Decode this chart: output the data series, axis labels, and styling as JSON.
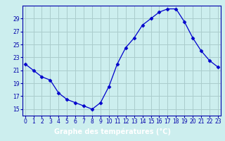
{
  "hours": [
    0,
    1,
    2,
    3,
    4,
    5,
    6,
    7,
    8,
    9,
    10,
    11,
    12,
    13,
    14,
    15,
    16,
    17,
    18,
    19,
    20,
    21,
    22,
    23
  ],
  "temps": [
    22.0,
    21.0,
    20.0,
    19.5,
    17.5,
    16.5,
    16.0,
    15.5,
    15.0,
    16.0,
    18.5,
    22.0,
    24.5,
    26.0,
    28.0,
    29.0,
    30.0,
    30.5,
    30.5,
    28.5,
    26.0,
    24.0,
    22.5,
    21.5
  ],
  "line_color": "#0000cc",
  "marker": "D",
  "marker_size": 2.5,
  "bg_color": "#cceeee",
  "grid_color": "#aacccc",
  "xlabel": "Graphe des températures (°C)",
  "xlabel_color": "#ffffff",
  "xlabel_bg": "#0000aa",
  "ylim": [
    14,
    31
  ],
  "yticks": [
    15,
    17,
    19,
    21,
    23,
    25,
    27,
    29
  ],
  "xticks": [
    0,
    1,
    2,
    3,
    4,
    5,
    6,
    7,
    8,
    9,
    10,
    11,
    12,
    13,
    14,
    15,
    16,
    17,
    18,
    19,
    20,
    21,
    22,
    23
  ],
  "tick_label_color": "#0000aa",
  "axis_color": "#0000aa",
  "tick_fontsize": 5.5,
  "xlabel_fontsize": 7
}
